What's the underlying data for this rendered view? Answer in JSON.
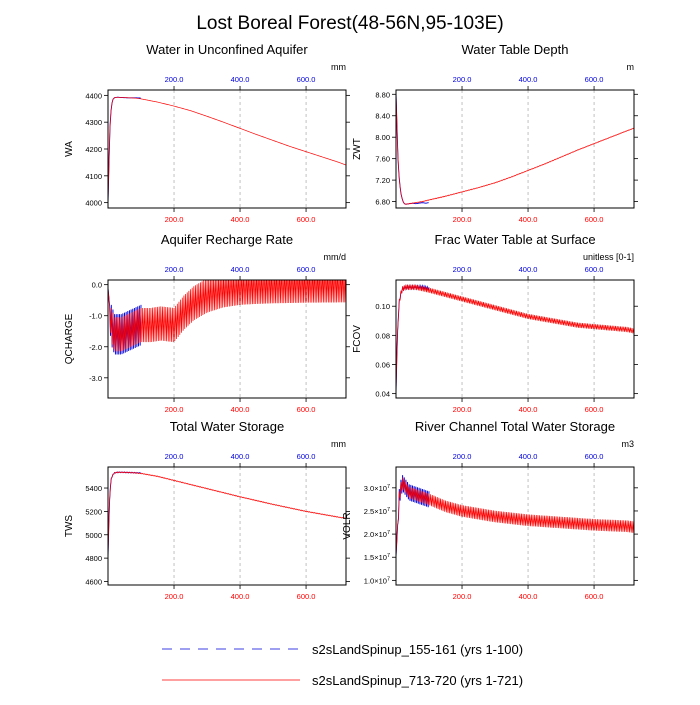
{
  "page": {
    "title": "Lost Boreal Forest(48-56N,95-103E)"
  },
  "colors": {
    "series1": "#0000dd",
    "series2": "#ff0000",
    "axis": "#000000",
    "grid": "#999999",
    "top_ticks": "#0000dd",
    "bottom_ticks": "#ff0000"
  },
  "legend": {
    "items": [
      {
        "label": "s2sLandSpinup_155-161 (yrs 1-100)",
        "color": "#0000dd",
        "style": "dashed"
      },
      {
        "label": "s2sLandSpinup_713-720 (yrs 1-721)",
        "color": "#ff0000",
        "style": "solid"
      }
    ]
  },
  "chart_data": [
    {
      "type": "line",
      "title": "Water in Unconfined Aquifer",
      "ylabel": "WA",
      "units": "mm",
      "xlim": [
        0,
        721
      ],
      "ylim": [
        3980,
        4420
      ],
      "yticks": [
        4000,
        4100,
        4200,
        4300,
        4400
      ],
      "ytick_labels": [
        "4000",
        "4100",
        "4200",
        "4300",
        "4400"
      ],
      "top_xticks": [
        200,
        400,
        600
      ],
      "top_xtick_labels": [
        "200.0",
        "400.0",
        "600.0"
      ],
      "bottom_xticks": [
        200,
        400,
        600
      ],
      "bottom_xtick_labels": [
        "200.0",
        "400.0",
        "600.0"
      ],
      "series": [
        {
          "name": "s2sLandSpinup_155-161 (yrs 1-100)",
          "x": [
            0,
            3,
            6,
            10,
            15,
            20,
            30,
            40,
            60,
            80,
            100
          ],
          "y": [
            3995,
            4150,
            4280,
            4360,
            4385,
            4392,
            4393,
            4392,
            4391,
            4391,
            4390
          ]
        },
        {
          "name": "s2sLandSpinup_713-720 (yrs 1-721)",
          "x": [
            0,
            3,
            6,
            10,
            15,
            20,
            30,
            40,
            60,
            80,
            100,
            150,
            200,
            250,
            300,
            350,
            400,
            450,
            500,
            550,
            600,
            650,
            700,
            721
          ],
          "y": [
            3995,
            4150,
            4280,
            4360,
            4385,
            4392,
            4393,
            4392,
            4391,
            4390,
            4387,
            4375,
            4360,
            4343,
            4322,
            4300,
            4277,
            4254,
            4232,
            4210,
            4190,
            4170,
            4150,
            4140
          ],
          "oscillation": 0
        }
      ]
    },
    {
      "type": "line",
      "title": "Water Table Depth",
      "ylabel": "ZWT",
      "units": "m",
      "xlim": [
        0,
        721
      ],
      "ylim": [
        6.68,
        8.88
      ],
      "yticks": [
        6.8,
        7.2,
        7.6,
        8.0,
        8.4,
        8.8
      ],
      "ytick_labels": [
        "6.80",
        "7.20",
        "7.60",
        "8.00",
        "8.40",
        "8.80"
      ],
      "top_xticks": [
        200,
        400,
        600
      ],
      "top_xtick_labels": [
        "200.0",
        "400.0",
        "600.0"
      ],
      "bottom_xticks": [
        200,
        400,
        600
      ],
      "bottom_xtick_labels": [
        "200.0",
        "400.0",
        "600.0"
      ],
      "series": [
        {
          "name": "s2sLandSpinup_155-161 (yrs 1-100)",
          "x": [
            0,
            3,
            6,
            10,
            15,
            20,
            25,
            30,
            40,
            50,
            60,
            70,
            80,
            90,
            100
          ],
          "y": [
            8.85,
            8.2,
            7.6,
            7.2,
            6.95,
            6.82,
            6.76,
            6.75,
            6.76,
            6.77,
            6.76,
            6.77,
            6.78,
            6.77,
            6.78
          ]
        },
        {
          "name": "s2sLandSpinup_713-720 (yrs 1-721)",
          "x": [
            0,
            3,
            6,
            10,
            15,
            20,
            25,
            30,
            40,
            50,
            60,
            80,
            100,
            150,
            200,
            250,
            300,
            350,
            400,
            450,
            500,
            550,
            600,
            650,
            700,
            721
          ],
          "y": [
            8.85,
            8.2,
            7.6,
            7.2,
            6.95,
            6.82,
            6.76,
            6.75,
            6.76,
            6.77,
            6.78,
            6.8,
            6.83,
            6.9,
            6.98,
            7.06,
            7.15,
            7.26,
            7.38,
            7.5,
            7.63,
            7.76,
            7.88,
            8.0,
            8.12,
            8.17
          ],
          "oscillation": 0.01
        }
      ]
    },
    {
      "type": "line",
      "title": "Aquifer Recharge Rate",
      "ylabel": "QCHARGE",
      "units": "mm/d",
      "xlim": [
        0,
        721
      ],
      "ylim": [
        -3.65,
        0.15
      ],
      "yticks": [
        -3.0,
        -2.0,
        -1.0,
        0.0
      ],
      "ytick_labels": [
        "-3.0",
        "-2.0",
        "-1.0",
        "0.0"
      ],
      "top_xticks": [
        200,
        400,
        600
      ],
      "top_xtick_labels": [
        "200.0",
        "400.0",
        "600.0"
      ],
      "bottom_xticks": [
        200,
        400,
        600
      ],
      "bottom_xtick_labels": [
        "200.0",
        "400.0",
        "600.0"
      ],
      "series": [
        {
          "name": "s2sLandSpinup_155-161 (yrs 1-100)",
          "x": [
            0,
            10,
            20,
            40,
            60,
            80,
            100
          ],
          "y": [
            -0.1,
            -1.3,
            -1.6,
            -1.6,
            -1.5,
            -1.4,
            -1.3
          ],
          "oscillation": 1.3
        },
        {
          "name": "s2sLandSpinup_713-720 (yrs 1-721)",
          "x": [
            0,
            10,
            20,
            40,
            60,
            80,
            100,
            130,
            160,
            200,
            230,
            260,
            300,
            350,
            400,
            450,
            500,
            600,
            721
          ],
          "y": [
            -0.1,
            -1.3,
            -1.6,
            -1.6,
            -1.5,
            -1.4,
            -1.3,
            -1.3,
            -1.25,
            -1.3,
            -0.9,
            -0.6,
            -0.35,
            -0.18,
            -0.1,
            -0.07,
            -0.05,
            -0.03,
            -0.02
          ],
          "oscillation": 1.1
        }
      ]
    },
    {
      "type": "line",
      "title": "Frac Water Table at Surface",
      "ylabel": "FCOV",
      "units": "unitless [0-1]",
      "xlim": [
        0,
        721
      ],
      "ylim": [
        0.037,
        0.118
      ],
      "yticks": [
        0.04,
        0.06,
        0.08,
        0.1
      ],
      "ytick_labels": [
        "0.04",
        "0.06",
        "0.08",
        "0.10"
      ],
      "top_xticks": [
        200,
        400,
        600
      ],
      "top_xtick_labels": [
        "200.0",
        "400.0",
        "600.0"
      ],
      "bottom_xticks": [
        200,
        400,
        600
      ],
      "bottom_xtick_labels": [
        "200.0",
        "400.0",
        "600.0"
      ],
      "series": [
        {
          "name": "s2sLandSpinup_155-161 (yrs 1-100)",
          "x": [
            0,
            3,
            6,
            10,
            15,
            20,
            30,
            40,
            60,
            80,
            100
          ],
          "y": [
            0.04,
            0.07,
            0.09,
            0.103,
            0.109,
            0.112,
            0.113,
            0.113,
            0.113,
            0.113,
            0.112
          ],
          "oscillation": 0.002
        },
        {
          "name": "s2sLandSpinup_713-720 (yrs 1-721)",
          "x": [
            0,
            3,
            6,
            10,
            15,
            20,
            30,
            40,
            60,
            80,
            100,
            150,
            200,
            250,
            300,
            350,
            400,
            450,
            500,
            550,
            600,
            650,
            700,
            721
          ],
          "y": [
            0.04,
            0.07,
            0.09,
            0.103,
            0.109,
            0.112,
            0.113,
            0.113,
            0.113,
            0.112,
            0.111,
            0.108,
            0.105,
            0.102,
            0.099,
            0.096,
            0.093,
            0.091,
            0.089,
            0.087,
            0.086,
            0.085,
            0.084,
            0.083
          ],
          "oscillation": 0.0035
        }
      ]
    },
    {
      "type": "line",
      "title": "Total Water Storage",
      "ylabel": "TWS",
      "units": "mm",
      "xlim": [
        0,
        721
      ],
      "ylim": [
        4570,
        5580
      ],
      "yticks": [
        4600,
        4800,
        5000,
        5200,
        5400
      ],
      "ytick_labels": [
        "4600",
        "4800",
        "5000",
        "5200",
        "5400"
      ],
      "top_xticks": [
        200,
        400,
        600
      ],
      "top_xtick_labels": [
        "200.0",
        "400.0",
        "600.0"
      ],
      "bottom_xticks": [
        200,
        400,
        600
      ],
      "bottom_xtick_labels": [
        "200.0",
        "400.0",
        "600.0"
      ],
      "series": [
        {
          "name": "s2sLandSpinup_155-161 (yrs 1-100)",
          "x": [
            0,
            3,
            6,
            10,
            15,
            20,
            30,
            40,
            60,
            80,
            100
          ],
          "y": [
            4800,
            5150,
            5380,
            5480,
            5515,
            5530,
            5535,
            5535,
            5533,
            5531,
            5528
          ],
          "oscillation": 6
        },
        {
          "name": "s2sLandSpinup_713-720 (yrs 1-721)",
          "x": [
            0,
            3,
            6,
            10,
            15,
            20,
            30,
            40,
            60,
            80,
            100,
            150,
            200,
            300,
            400,
            500,
            600,
            700,
            721
          ],
          "y": [
            4800,
            5150,
            5380,
            5480,
            5515,
            5530,
            5535,
            5535,
            5533,
            5530,
            5525,
            5500,
            5465,
            5395,
            5325,
            5260,
            5200,
            5150,
            5140
          ],
          "oscillation": 6
        }
      ]
    },
    {
      "type": "line",
      "title": "River Channel Total Water Storage",
      "ylabel": "VOLR",
      "units": "m3",
      "xlim": [
        0,
        721
      ],
      "ylim": [
        0.9,
        3.45
      ],
      "yticks": [
        1.0,
        1.5,
        2.0,
        2.5,
        3.0
      ],
      "ytick_labels": [
        "1.0",
        "1.5",
        "2.0",
        "2.5",
        "3.0"
      ],
      "ytick_suffix": "×10",
      "ytick_exp": "7",
      "top_xticks": [
        200,
        400,
        600
      ],
      "top_xtick_labels": [
        "200.0",
        "400.0",
        "600.0"
      ],
      "bottom_xticks": [
        200,
        400,
        600
      ],
      "bottom_xtick_labels": [
        "200.0",
        "400.0",
        "600.0"
      ],
      "series": [
        {
          "name": "s2sLandSpinup_155-161 (yrs 1-100)",
          "x": [
            0,
            5,
            10,
            15,
            20,
            30,
            40,
            60,
            80,
            100
          ],
          "y": [
            1.5,
            2.2,
            2.8,
            3.0,
            3.1,
            3.0,
            2.9,
            2.85,
            2.8,
            2.75
          ],
          "oscillation": 0.35
        },
        {
          "name": "s2sLandSpinup_713-720 (yrs 1-721)",
          "x": [
            0,
            5,
            10,
            15,
            20,
            30,
            40,
            60,
            80,
            100,
            150,
            200,
            300,
            400,
            500,
            600,
            700,
            721
          ],
          "y": [
            1.5,
            2.2,
            2.8,
            3.0,
            3.1,
            3.0,
            2.9,
            2.85,
            2.8,
            2.75,
            2.6,
            2.5,
            2.38,
            2.3,
            2.25,
            2.2,
            2.17,
            2.15
          ],
          "oscillation": 0.25
        }
      ]
    }
  ]
}
